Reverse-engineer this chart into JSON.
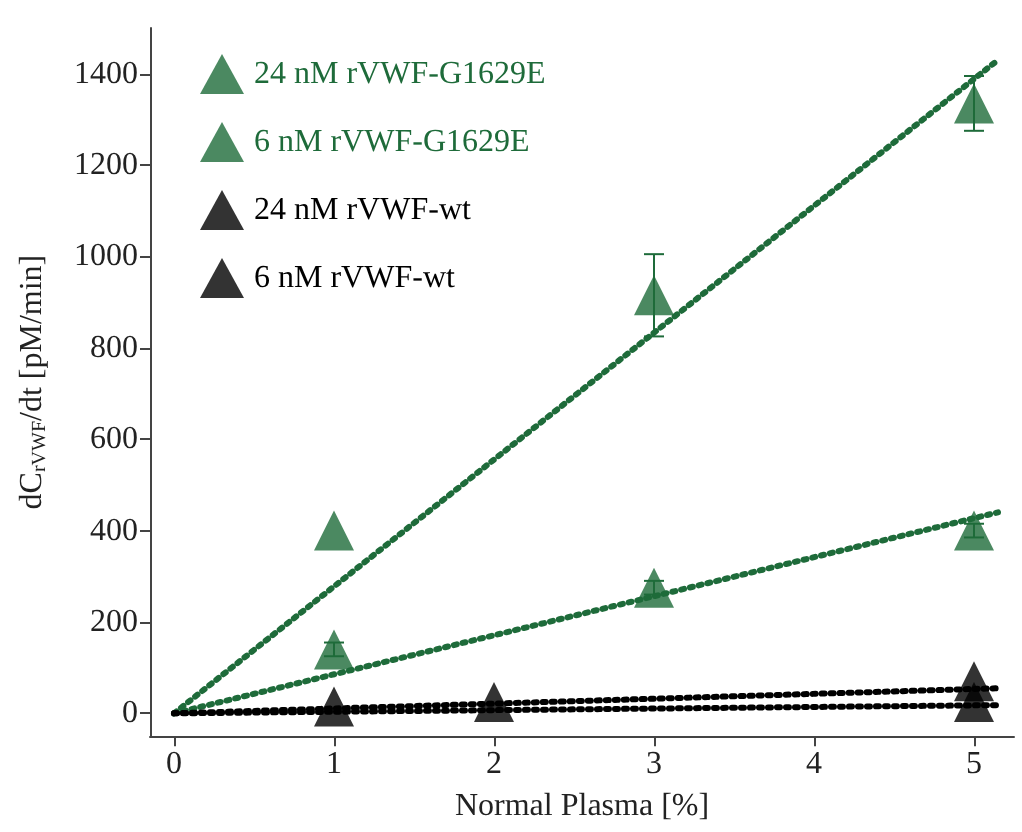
{
  "chart_data": {
    "type": "scatter",
    "xlabel": "Normal Plasma [%]",
    "ylabel": "dC$_{rVWF}$/dt [pM/min]",
    "xlim": [
      -0.15,
      5.25
    ],
    "xticks": [
      0,
      1,
      2,
      3,
      4,
      5
    ],
    "ylim": [
      -50,
      1500
    ],
    "yticks": [
      0,
      200,
      400,
      600,
      800,
      1000,
      1200,
      1400
    ],
    "grid": false,
    "legend": "top left",
    "marker": "triangle",
    "series": [
      {
        "name": "24 nM rVWF-G1629E",
        "color": "#1e6b3a",
        "x": [
          1,
          3,
          5
        ],
        "values": [
          400,
          915,
          1335
        ],
        "errors": [
          null,
          90,
          60
        ]
      },
      {
        "name": "6 nM rVWF-G1629E",
        "color": "#1e6b3a",
        "x": [
          1,
          3,
          5
        ],
        "values": [
          140,
          275,
          400
        ],
        "errors": [
          15,
          15,
          15
        ]
      },
      {
        "name": "24 nM rVWF-wt",
        "color": "#000000",
        "x": [
          1,
          2,
          5
        ],
        "values": [
          15,
          25,
          70
        ]
      },
      {
        "name": "6 nM rVWF-wt",
        "color": "#000000",
        "x": [
          5
        ],
        "values": [
          25
        ]
      },
      {
        "type": "line",
        "line_style": "dotted",
        "marker": "none",
        "color": "#1e6b3a",
        "x": [
          0,
          5.15
        ],
        "values": [
          0,
          1430
        ]
      },
      {
        "type": "line",
        "line_style": "dotted",
        "marker": "none",
        "color": "#1e6b3a",
        "x": [
          0,
          5.15
        ],
        "values": [
          0,
          440
        ]
      },
      {
        "type": "line",
        "line_style": "dotted",
        "marker": "none",
        "color": "#000000",
        "x": [
          0,
          5.15
        ],
        "values": [
          0,
          55
        ]
      },
      {
        "type": "line",
        "line_style": "dotted",
        "marker": "none",
        "color": "#000000",
        "x": [
          0,
          5.15
        ],
        "values": [
          0,
          18
        ]
      }
    ]
  }
}
